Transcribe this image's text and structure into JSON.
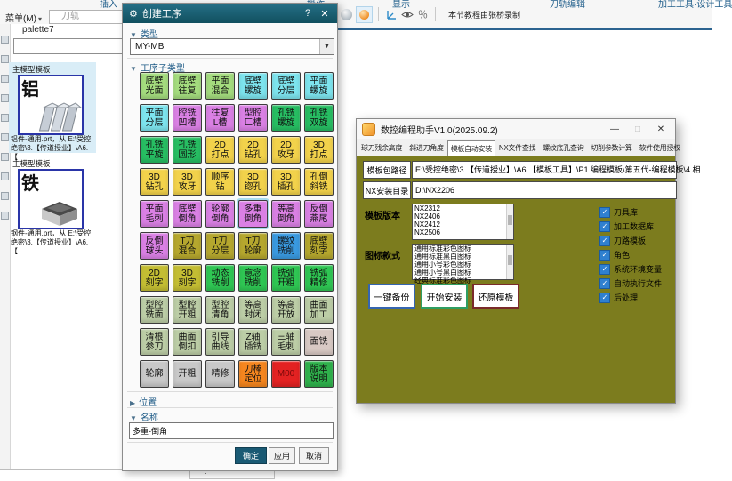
{
  "icons": {
    "gear": "⚙",
    "help": "?",
    "close": "✕",
    "minimize": "—",
    "maximize": "□",
    "caret_down": "▾",
    "dd_arrow": "▼",
    "arrow_expanded": "▼",
    "arrow_collapsed": "▶",
    "check": "✓",
    "percent": "％",
    "dot": "·"
  },
  "colors": {
    "title_teal": "#14596B",
    "helper_body_olive": "#7c7c1e",
    "checkbox_blue": "#2f80d0",
    "selected_card_blue": "#d9edf7",
    "grid": {
      "g1": "#a4dc7e",
      "cy": "#7de4ee",
      "vi": "#da80e4",
      "g2": "#27bd62",
      "ye": "#f2d24b",
      "ol": "#b5a72e",
      "yg": "#c3bd33",
      "bg": "#2fc653",
      "sa": "#bccda6",
      "pk": "#d8c9c4",
      "gr": "#c8c8c8",
      "or": "#f5861f",
      "re": "#e32222",
      "b2": "#2fb24c",
      "bl": "#3a9ae0"
    }
  },
  "window": {
    "ribbon_tabs": [
      "插入",
      "操作",
      "显示",
      "刀轨编辑",
      "加工工具·设计工具"
    ],
    "menu_label": "菜单(M)",
    "toolpath_label": "刀轨",
    "recorder_note": "本节教程由张桥录制"
  },
  "palette": {
    "title": "palette7",
    "search_value": "",
    "cards": [
      {
        "group": "主模型模板",
        "big_char": "铝",
        "caption": "铝件-通用.prt，从 E:\\受控绝密\\3.【传道授业】\\A6.【",
        "selected": true
      },
      {
        "group": "主模型模板",
        "big_char": "铁",
        "caption": "钢件-通用.prt，从 E:\\受控绝密\\3.【传道授业】\\A6.【",
        "selected": false
      }
    ]
  },
  "create_op_dialog": {
    "title": "创建工序",
    "type_section": "类型",
    "type_value": "MY-MB",
    "subtype_section": "工序子类型",
    "selected_index": 27,
    "grid": [
      {
        "l": "底壁\n光面",
        "c": "g1"
      },
      {
        "l": "底壁\n往复",
        "c": "g1"
      },
      {
        "l": "平面\n混合",
        "c": "g1"
      },
      {
        "l": "底壁\n螺旋",
        "c": "cy"
      },
      {
        "l": "底壁\n分层",
        "c": "cy"
      },
      {
        "l": "平面\n螺旋",
        "c": "cy"
      },
      {
        "l": "平面\n分层",
        "c": "cy"
      },
      {
        "l": "腔铣\n凹槽",
        "c": "vi"
      },
      {
        "l": "往复\nL槽",
        "c": "vi"
      },
      {
        "l": "型腔\n匚槽",
        "c": "vi"
      },
      {
        "l": "孔铣\n螺旋",
        "c": "g2"
      },
      {
        "l": "孔铣\n双旋",
        "c": "g2"
      },
      {
        "l": "孔铣\n平旋",
        "c": "g2"
      },
      {
        "l": "孔铣\n圆形",
        "c": "g2"
      },
      {
        "l": "2D\n打点",
        "c": "ye"
      },
      {
        "l": "2D\n钻孔",
        "c": "ye"
      },
      {
        "l": "2D\n攻牙",
        "c": "ye"
      },
      {
        "l": "3D\n打点",
        "c": "ye"
      },
      {
        "l": "3D\n钻孔",
        "c": "ye"
      },
      {
        "l": "3D\n攻牙",
        "c": "ye"
      },
      {
        "l": "顺序\n钻",
        "c": "ye"
      },
      {
        "l": "3D\n锪孔",
        "c": "ye"
      },
      {
        "l": "3D\n插孔",
        "c": "ye"
      },
      {
        "l": "孔倒\n斜铣",
        "c": "ye"
      },
      {
        "l": "平面\n毛刺",
        "c": "vi"
      },
      {
        "l": "底壁\n倒角",
        "c": "vi"
      },
      {
        "l": "轮廓\n倒角",
        "c": "vi"
      },
      {
        "l": "多重\n倒角",
        "c": "vi"
      },
      {
        "l": "等高\n倒角",
        "c": "vi"
      },
      {
        "l": "反倒\n燕尾",
        "c": "vi"
      },
      {
        "l": "反倒\n球头",
        "c": "vi"
      },
      {
        "l": "T刀\n混合",
        "c": "ol"
      },
      {
        "l": "T刀\n分层",
        "c": "ol"
      },
      {
        "l": "T刀\n轮廓",
        "c": "ol"
      },
      {
        "l": "螺纹\n铣削",
        "c": "bl"
      },
      {
        "l": "底壁\n刻字",
        "c": "ol"
      },
      {
        "l": "2D\n刻字",
        "c": "yg"
      },
      {
        "l": "3D\n刻字",
        "c": "yg"
      },
      {
        "l": "动态\n铣削",
        "c": "bg"
      },
      {
        "l": "意念\n铣削",
        "c": "bg"
      },
      {
        "l": "铣弧\n开粗",
        "c": "bg"
      },
      {
        "l": "铣弧\n精修",
        "c": "bg"
      },
      {
        "l": "型腔\n铣面",
        "c": "sa"
      },
      {
        "l": "型腔\n开粗",
        "c": "sa"
      },
      {
        "l": "型腔\n清角",
        "c": "sa"
      },
      {
        "l": "等高\n封闭",
        "c": "sa"
      },
      {
        "l": "等高\n开放",
        "c": "sa"
      },
      {
        "l": "曲面\n加工",
        "c": "sa"
      },
      {
        "l": "清根\n参刀",
        "c": "sa"
      },
      {
        "l": "曲面\n倒扣",
        "c": "sa"
      },
      {
        "l": "引导\n曲线",
        "c": "sa"
      },
      {
        "l": "Z轴\n插铣",
        "c": "sa"
      },
      {
        "l": "三轴\n毛刺",
        "c": "sa"
      },
      {
        "l": "面铣",
        "c": "pk"
      },
      {
        "l": "轮廓",
        "c": "gr"
      },
      {
        "l": "开粗",
        "c": "gr"
      },
      {
        "l": "精修",
        "c": "gr"
      },
      {
        "l": "刀棒\n定位",
        "c": "or"
      },
      {
        "l": "M00",
        "c": "re",
        "tc": "#7c0a0a"
      },
      {
        "l": "版本\n说明",
        "c": "b2"
      }
    ],
    "position_section": "位置",
    "name_section": "名称",
    "name_value": "多重-倒角",
    "buttons": {
      "ok": "确定",
      "apply": "应用",
      "cancel": "取消"
    }
  },
  "helper_dialog": {
    "title": "数控编程助手V1.0(2025.09.2)",
    "tabs": [
      "球刀残余高度",
      "斜进刀角度",
      "模板自动安装",
      "NX文件查找",
      "螺纹底孔查询",
      "切削参数计算",
      "软件使用授权"
    ],
    "active_tab": 2,
    "rows": [
      {
        "button": "模板包路径",
        "value": "E:\\受控绝密\\3.【传道授业】\\A6.【模板工具】\\P1.编程模板\\第五代-编程模板\\4.相"
      },
      {
        "button": "NX安装目录",
        "value": "D:\\NX2206"
      }
    ],
    "version_label": "模板版本",
    "versions": [
      "NX2312",
      "NX2406",
      "NX2412",
      "NX2506"
    ],
    "icon_label": "图标款式",
    "icon_styles": [
      "通用标准彩色图标",
      "通用标准黑白图标",
      "通用小号彩色图标",
      "通用小号黑白图标",
      "经典标准彩色图标"
    ],
    "actions": [
      {
        "label": "一键备份",
        "border": "#3565b0"
      },
      {
        "label": "开始安装",
        "border": "#2e9e62"
      },
      {
        "label": "还原模板",
        "border": "#7a2a2a"
      }
    ],
    "checkboxes": [
      "刀具库",
      "加工数据库",
      "刀路模板",
      "角色",
      "系统环境变量",
      "自动执行文件",
      "后处理"
    ]
  }
}
